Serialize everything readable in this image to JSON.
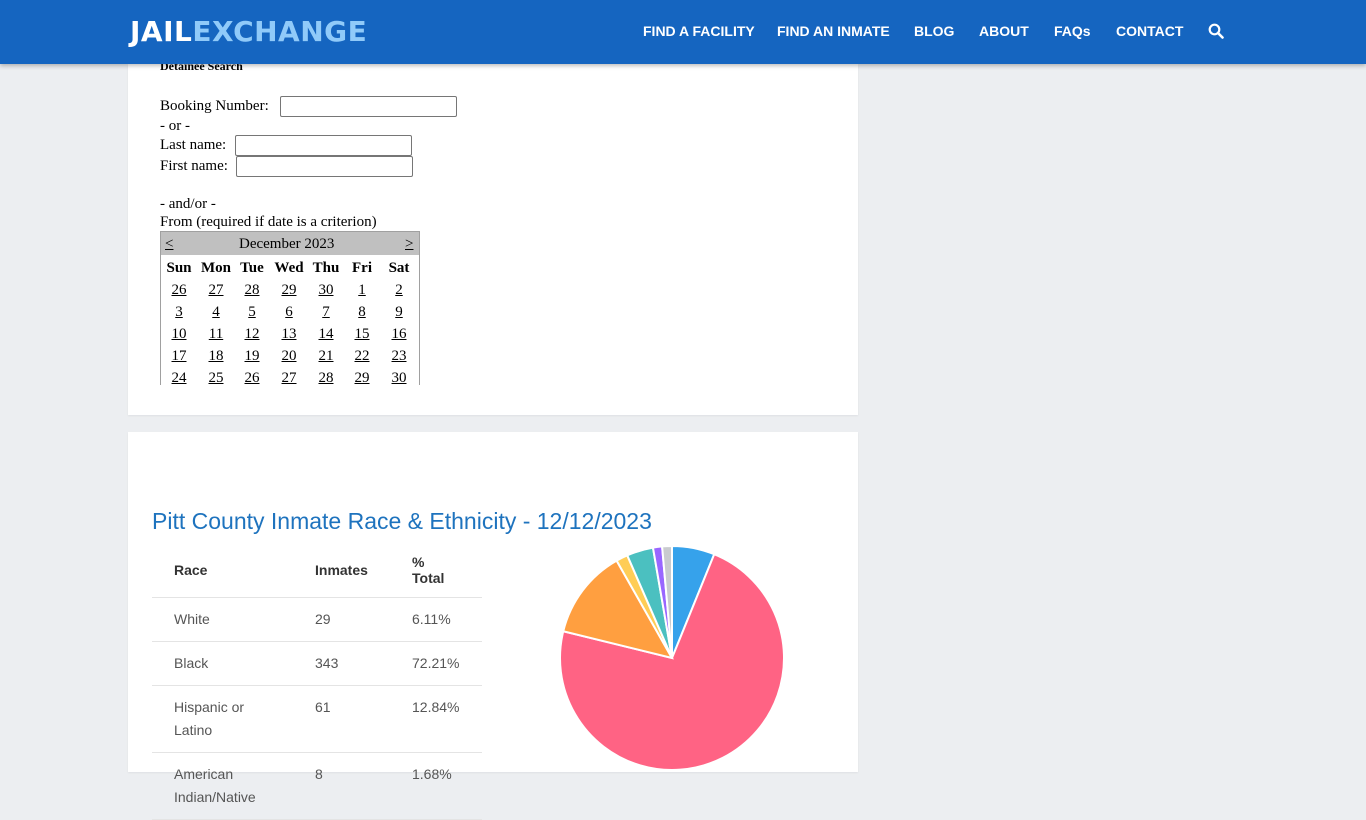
{
  "header": {
    "logo_part1": "JAIL",
    "logo_part2": "EXCHANGE",
    "nav": [
      "FIND A FACILITY",
      "FIND AN INMATE",
      "BLOG",
      "ABOUT",
      "FAQs",
      "CONTACT"
    ]
  },
  "search_form": {
    "title": "Detainee Search",
    "booking_label": "Booking Number:",
    "or_label": "- or -",
    "last_name_label": "Last name:",
    "first_name_label": "First name:",
    "andor_label": "- and/or -",
    "from_label": "From (required if date is a criterion)",
    "booking_value": "",
    "last_name_value": "",
    "first_name_value": ""
  },
  "calendar": {
    "prev": "<",
    "next": ">",
    "month": "December 2023",
    "days_of_week": [
      "Sun",
      "Mon",
      "Tue",
      "Wed",
      "Thu",
      "Fri",
      "Sat"
    ],
    "weeks": [
      [
        "26",
        "27",
        "28",
        "29",
        "30",
        "1",
        "2"
      ],
      [
        "3",
        "4",
        "5",
        "6",
        "7",
        "8",
        "9"
      ],
      [
        "10",
        "11",
        "12",
        "13",
        "14",
        "15",
        "16"
      ],
      [
        "17",
        "18",
        "19",
        "20",
        "21",
        "22",
        "23"
      ],
      [
        "24",
        "25",
        "26",
        "27",
        "28",
        "29",
        "30"
      ]
    ]
  },
  "race_section": {
    "title": "Pitt County Inmate Race & Ethnicity - 12/12/2023",
    "headers": [
      "Race",
      "Inmates",
      "% Total"
    ],
    "rows": [
      {
        "race": "White",
        "inmates": "29",
        "pct": "6.11%"
      },
      {
        "race": "Black",
        "inmates": "343",
        "pct": "72.21%"
      },
      {
        "race": "Hispanic or Latino",
        "inmates": "61",
        "pct": "12.84%"
      },
      {
        "race": "American Indian/Native",
        "inmates": "8",
        "pct": "1.68%"
      }
    ]
  },
  "chart_data": {
    "type": "pie",
    "values": [
      6.11,
      72.21,
      12.84,
      1.68,
      3.8,
      1.3,
      1.4
    ],
    "colors": [
      "#36a2eb",
      "#ff6384",
      "#ff9f40",
      "#ffcd56",
      "#4bc0c0",
      "#9966ff",
      "#c9cbcf"
    ]
  }
}
